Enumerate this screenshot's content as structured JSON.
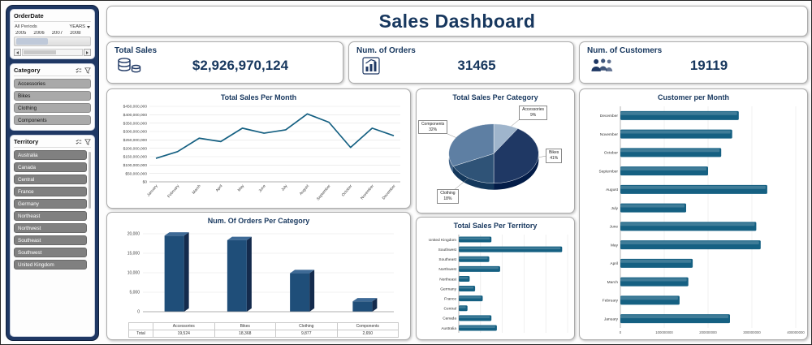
{
  "title": "Sales Dashboard",
  "colors": {
    "navy": "#17375E",
    "accent": "#156082",
    "column_front": "#1F4E79",
    "column_top": "#3E6A96",
    "column_side": "#142B4D",
    "grid": "#E2E2E2",
    "pie": [
      "#9FB5CC",
      "#1F3864",
      "#2F5377",
      "#5E7FA3"
    ]
  },
  "sidebar": {
    "order_date": {
      "title": "OrderDate",
      "period": "All Periods",
      "granularity": "YEARS",
      "years": [
        "2005",
        "2006",
        "2007",
        "2008"
      ]
    },
    "category": {
      "title": "Category",
      "items": [
        "Accessories",
        "Bikes",
        "Clothing",
        "Components"
      ]
    },
    "territory": {
      "title": "Territory",
      "items": [
        "Australia",
        "Canada",
        "Central",
        "France",
        "Germany",
        "Northeast",
        "Northwest",
        "Southeast",
        "Southwest",
        "United Kingdom"
      ]
    }
  },
  "kpis": [
    {
      "label": "Total Sales",
      "value": "$2,926,970,124",
      "icon": "coins-icon"
    },
    {
      "label": "Num. of Orders",
      "value": "31465",
      "icon": "bar-chart-icon"
    },
    {
      "label": "Num. of Customers",
      "value": "19119",
      "icon": "people-icon"
    }
  ],
  "chart_data": [
    {
      "type": "line",
      "title": "Total Sales Per Month",
      "categories": [
        "January",
        "February",
        "March",
        "April",
        "May",
        "June",
        "July",
        "August",
        "September",
        "October",
        "November",
        "December"
      ],
      "values": [
        140000000,
        180000000,
        260000000,
        240000000,
        320000000,
        290000000,
        310000000,
        405000000,
        355000000,
        205000000,
        320000000,
        275000000
      ],
      "ylim": [
        0,
        450000000
      ],
      "ytick_step": 50000000,
      "ylabel_prefix": "$",
      "grid": true
    },
    {
      "type": "pie",
      "title": "Total Sales Per Category",
      "labels": [
        "Accessories",
        "Bikes",
        "Clothing",
        "Components"
      ],
      "values": [
        9,
        41,
        18,
        32
      ],
      "value_suffix": "%"
    },
    {
      "type": "bar-horizontal",
      "title": "Customer per Month",
      "categories": [
        "December",
        "November",
        "October",
        "September",
        "August",
        "July",
        "June",
        "May",
        "April",
        "March",
        "February",
        "January"
      ],
      "values": [
        270000000,
        255000000,
        230000000,
        200000000,
        335000000,
        150000000,
        310000000,
        320000000,
        165000000,
        155000000,
        135000000,
        250000000
      ],
      "xlim": [
        0,
        400000000
      ],
      "xtick_step": 100000000,
      "xtick_labels": [
        "0",
        "100000000",
        "200000000",
        "300000000",
        "400000000"
      ]
    },
    {
      "type": "column",
      "title": "Num. Of Orders Per Category",
      "categories": [
        "Accessories",
        "Bikes",
        "Clothing",
        "Components"
      ],
      "values": [
        19524,
        18368,
        9877,
        2650
      ],
      "ylim": [
        0,
        20000
      ],
      "ytick_step": 5000,
      "ytick_labels": [
        "0",
        "5,000",
        "10,000",
        "15,000",
        "20,000"
      ],
      "table": {
        "row_label": "Total",
        "values": [
          "19,524",
          "18,368",
          "9,877",
          "2,650"
        ]
      }
    },
    {
      "type": "bar-horizontal",
      "title": "Total Sales Per Territory",
      "categories": [
        "United Kingdom",
        "Southwest",
        "Southeast",
        "Northwest",
        "Northeast",
        "Germany",
        "France",
        "Central",
        "Canada",
        "Australia"
      ],
      "values": [
        300000000,
        950000000,
        280000000,
        380000000,
        100000000,
        150000000,
        220000000,
        80000000,
        300000000,
        350000000
      ],
      "xlim": [
        0,
        1000000000
      ],
      "xtick_step": 200000000
    }
  ]
}
